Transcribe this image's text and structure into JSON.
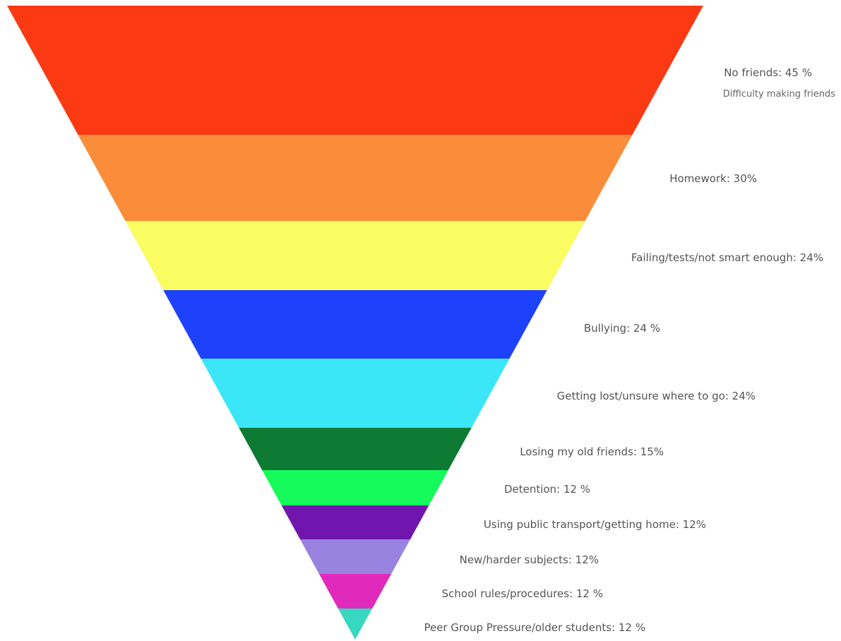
{
  "chart_data": {
    "type": "funnel",
    "title": "",
    "categories": [
      "No friends",
      "Homework",
      "Failing/tests/not smart enough",
      "Bullying",
      "Getting lost/unsure where to go",
      "Losing my old friends",
      "Detention",
      "Using public transport/getting home",
      "New/harder subjects",
      "School rules/procedures",
      "Peer Group Pressure/older students"
    ],
    "values": [
      45,
      30,
      24,
      24,
      24,
      15,
      12,
      12,
      12,
      12,
      12
    ],
    "unit": "%",
    "labels": [
      "No friends: 45 %",
      "Homework: 30%",
      "Failing/tests/not smart enough: 24%",
      "Bullying: 24 %",
      "Getting lost/unsure where to go: 24%",
      "Losing my old friends: 15%",
      "Detention: 12 %",
      "Using public transport/getting home: 12%",
      "New/harder subjects: 12%",
      "School rules/procedures: 12 %",
      "Peer Group Pressure/older students: 12 %"
    ],
    "annotations": [
      {
        "category": "No friends",
        "text": "Difficulty making friends"
      }
    ],
    "colors": [
      "#fb3a14",
      "#fb8d3a",
      "#fbfb62",
      "#1e42fb",
      "#3ae6f8",
      "#0c7a32",
      "#16fb5c",
      "#7016ae",
      "#9a82e0",
      "#e02abb",
      "#38d8c0"
    ],
    "legend": "none",
    "grid": false
  }
}
